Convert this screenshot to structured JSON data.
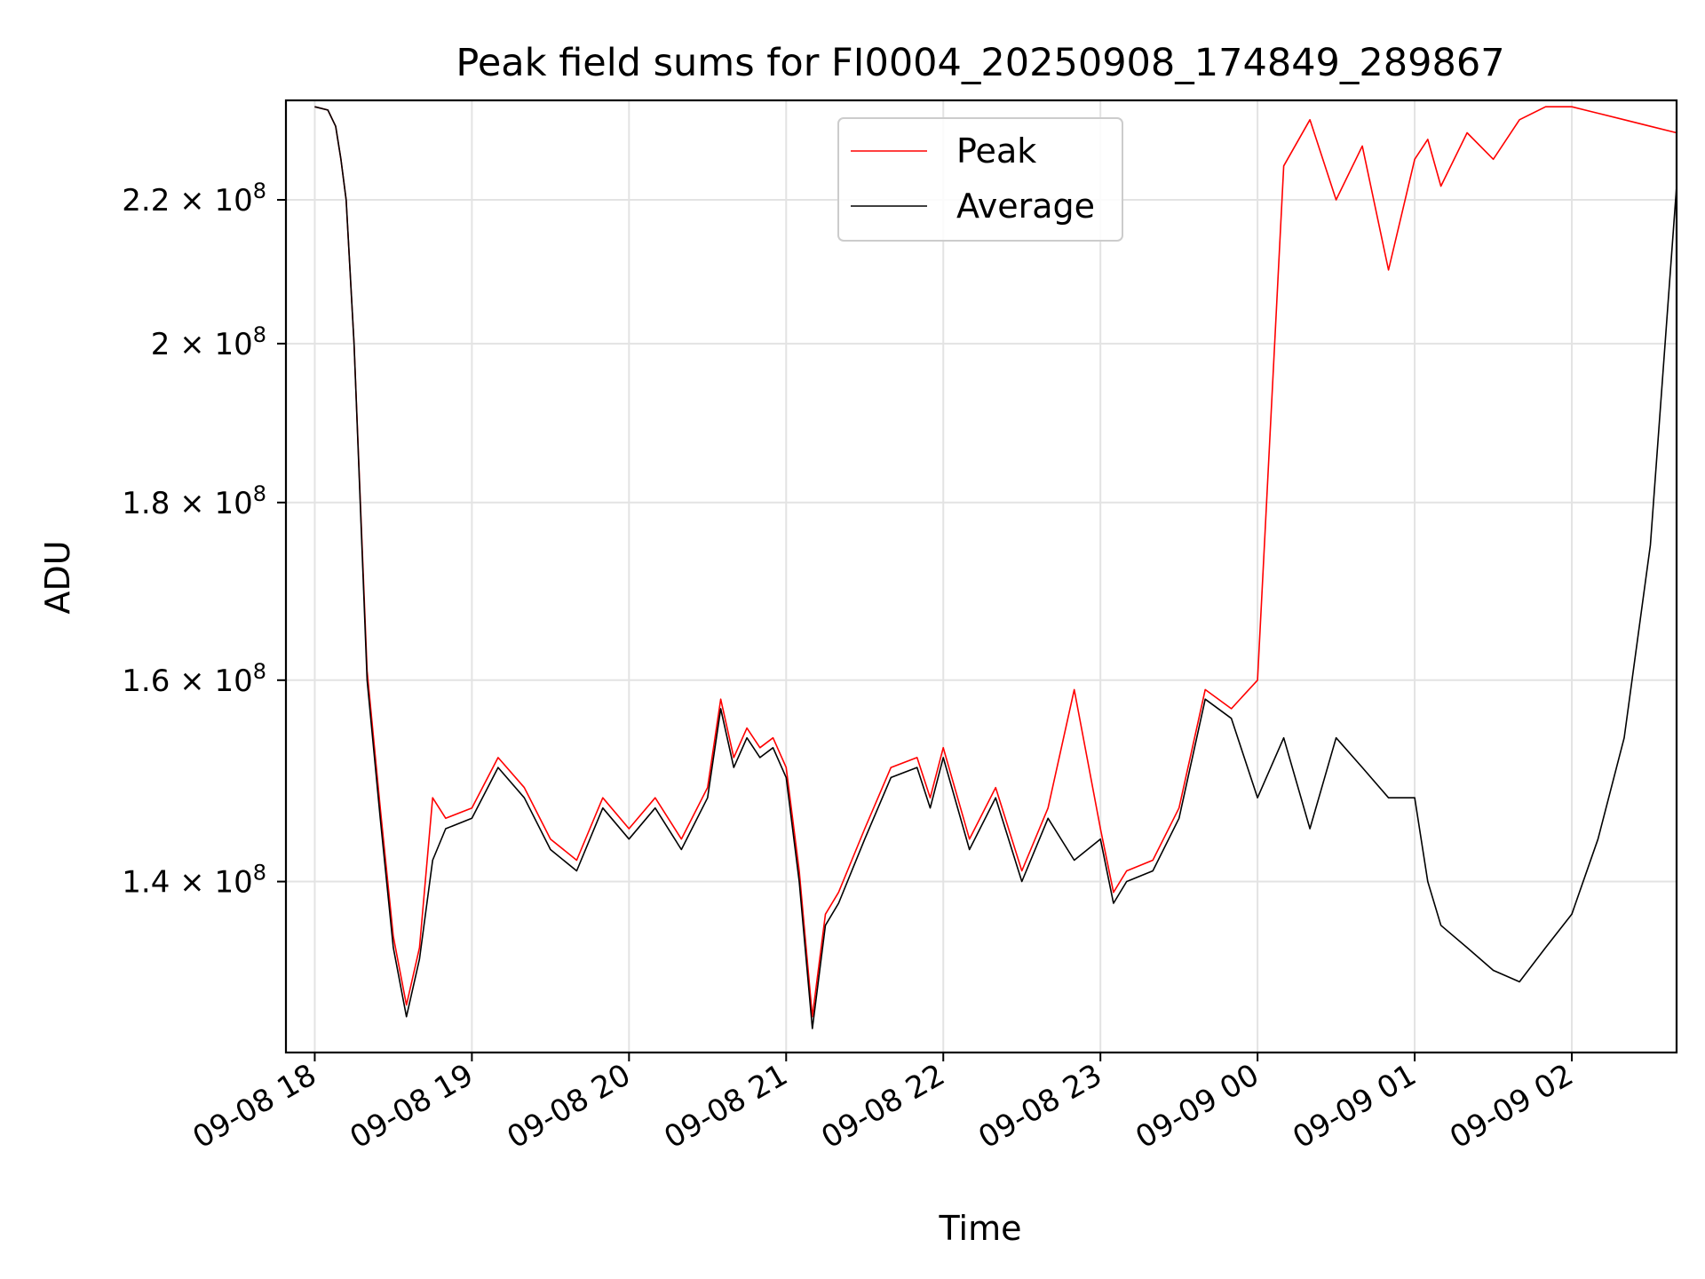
{
  "chart_data": {
    "type": "line",
    "title": "Peak field sums for FI0004_20250908_174849_289867",
    "xlabel": "Time",
    "ylabel": "ADU",
    "y_scale": "log",
    "xlim": [
      "2025-09-08 17:49",
      "2025-09-09 02:40"
    ],
    "ylim": [
      125000000,
      235000000
    ],
    "grid": true,
    "legend": {
      "position": "upper center",
      "entries": [
        "Peak",
        "Average"
      ]
    },
    "x_ticks": [
      "09-08 18",
      "09-08 19",
      "09-08 20",
      "09-08 21",
      "09-08 22",
      "09-08 23",
      "09-09 00",
      "09-09 01",
      "09-09 02"
    ],
    "x_tick_times": [
      "2025-09-08 18:00",
      "2025-09-08 19:00",
      "2025-09-08 20:00",
      "2025-09-08 21:00",
      "2025-09-08 22:00",
      "2025-09-08 23:00",
      "2025-09-09 00:00",
      "2025-09-09 01:00",
      "2025-09-09 02:00"
    ],
    "y_ticks": [
      {
        "value": 140000000,
        "mantissa": "1.4",
        "exp": "8"
      },
      {
        "value": 160000000,
        "mantissa": "1.6",
        "exp": "8"
      },
      {
        "value": 180000000,
        "mantissa": "1.8",
        "exp": "8"
      },
      {
        "value": 200000000,
        "mantissa": "2",
        "exp": "8"
      },
      {
        "value": 220000000,
        "mantissa": "2.2",
        "exp": "8"
      }
    ],
    "series": [
      {
        "name": "Average",
        "color": "#000000",
        "x": [
          "2025-09-08 18:00",
          "2025-09-08 18:05",
          "2025-09-08 18:08",
          "2025-09-08 18:10",
          "2025-09-08 18:12",
          "2025-09-08 18:15",
          "2025-09-08 18:20",
          "2025-09-08 18:25",
          "2025-09-08 18:30",
          "2025-09-08 18:35",
          "2025-09-08 18:40",
          "2025-09-08 18:45",
          "2025-09-08 18:50",
          "2025-09-08 19:00",
          "2025-09-08 19:10",
          "2025-09-08 19:20",
          "2025-09-08 19:30",
          "2025-09-08 19:40",
          "2025-09-08 19:50",
          "2025-09-08 20:00",
          "2025-09-08 20:10",
          "2025-09-08 20:20",
          "2025-09-08 20:30",
          "2025-09-08 20:35",
          "2025-09-08 20:40",
          "2025-09-08 20:45",
          "2025-09-08 20:50",
          "2025-09-08 20:55",
          "2025-09-08 21:00",
          "2025-09-08 21:05",
          "2025-09-08 21:10",
          "2025-09-08 21:15",
          "2025-09-08 21:20",
          "2025-09-08 21:30",
          "2025-09-08 21:40",
          "2025-09-08 21:50",
          "2025-09-08 21:55",
          "2025-09-08 22:00",
          "2025-09-08 22:10",
          "2025-09-08 22:20",
          "2025-09-08 22:30",
          "2025-09-08 22:40",
          "2025-09-08 22:50",
          "2025-09-08 23:00",
          "2025-09-08 23:05",
          "2025-09-08 23:10",
          "2025-09-08 23:20",
          "2025-09-08 23:30",
          "2025-09-08 23:40",
          "2025-09-08 23:50",
          "2025-09-09 00:00",
          "2025-09-09 00:10",
          "2025-09-09 00:20",
          "2025-09-09 00:30",
          "2025-09-09 00:40",
          "2025-09-09 00:50",
          "2025-09-09 01:00",
          "2025-09-09 01:05",
          "2025-09-09 01:10",
          "2025-09-09 01:20",
          "2025-09-09 01:30",
          "2025-09-09 01:40",
          "2025-09-09 01:50",
          "2025-09-09 02:00",
          "2025-09-09 02:10",
          "2025-09-09 02:20",
          "2025-09-09 02:30",
          "2025-09-09 02:40"
        ],
        "y": [
          234000000,
          233500000,
          231000000,
          226000000,
          220000000,
          200000000,
          160000000,
          146000000,
          134000000,
          128000000,
          133000000,
          142000000,
          145000000,
          146000000,
          151000000,
          148000000,
          143000000,
          141000000,
          147000000,
          144000000,
          147000000,
          143000000,
          148000000,
          157000000,
          151000000,
          154000000,
          152000000,
          153000000,
          150000000,
          140000000,
          127000000,
          136000000,
          138000000,
          144000000,
          150000000,
          151000000,
          147000000,
          152000000,
          143000000,
          148000000,
          140000000,
          146000000,
          142000000,
          144000000,
          138000000,
          140000000,
          141000000,
          146000000,
          158000000,
          156000000,
          148000000,
          154000000,
          145000000,
          154000000,
          151000000,
          148000000,
          148000000,
          140000000,
          136000000,
          134000000,
          132000000,
          131000000,
          134000000,
          137000000,
          144000000,
          154000000,
          175000000,
          222000000
        ]
      },
      {
        "name": "Peak",
        "color": "#ff0000",
        "x": [
          "2025-09-08 18:00",
          "2025-09-08 18:05",
          "2025-09-08 18:08",
          "2025-09-08 18:10",
          "2025-09-08 18:12",
          "2025-09-08 18:15",
          "2025-09-08 18:20",
          "2025-09-08 18:25",
          "2025-09-08 18:30",
          "2025-09-08 18:35",
          "2025-09-08 18:40",
          "2025-09-08 18:45",
          "2025-09-08 18:50",
          "2025-09-08 19:00",
          "2025-09-08 19:10",
          "2025-09-08 19:20",
          "2025-09-08 19:30",
          "2025-09-08 19:40",
          "2025-09-08 19:50",
          "2025-09-08 20:00",
          "2025-09-08 20:10",
          "2025-09-08 20:20",
          "2025-09-08 20:30",
          "2025-09-08 20:35",
          "2025-09-08 20:40",
          "2025-09-08 20:45",
          "2025-09-08 20:50",
          "2025-09-08 20:55",
          "2025-09-08 21:00",
          "2025-09-08 21:05",
          "2025-09-08 21:10",
          "2025-09-08 21:15",
          "2025-09-08 21:20",
          "2025-09-08 21:30",
          "2025-09-08 21:40",
          "2025-09-08 21:50",
          "2025-09-08 21:55",
          "2025-09-08 22:00",
          "2025-09-08 22:10",
          "2025-09-08 22:20",
          "2025-09-08 22:30",
          "2025-09-08 22:40",
          "2025-09-08 22:50",
          "2025-09-08 23:00",
          "2025-09-08 23:05",
          "2025-09-08 23:10",
          "2025-09-08 23:20",
          "2025-09-08 23:30",
          "2025-09-08 23:40",
          "2025-09-08 23:50",
          "2025-09-09 00:00",
          "2025-09-09 00:10",
          "2025-09-09 00:20",
          "2025-09-09 00:30",
          "2025-09-09 00:40",
          "2025-09-09 00:50",
          "2025-09-09 01:00",
          "2025-09-09 01:05",
          "2025-09-09 01:10",
          "2025-09-09 01:20",
          "2025-09-09 01:30",
          "2025-09-09 01:40",
          "2025-09-09 01:50",
          "2025-09-09 02:00",
          "2025-09-09 02:10",
          "2025-09-09 02:20",
          "2025-09-09 02:30",
          "2025-09-09 02:40"
        ],
        "y": [
          234000000,
          233500000,
          231000000,
          226000000,
          220000000,
          200000000,
          161000000,
          147000000,
          135000000,
          129000000,
          134000000,
          148000000,
          146000000,
          147000000,
          152000000,
          149000000,
          144000000,
          142000000,
          148000000,
          145000000,
          148000000,
          144000000,
          149000000,
          158000000,
          152000000,
          155000000,
          153000000,
          154000000,
          151000000,
          141000000,
          128000000,
          137000000,
          139000000,
          145000000,
          151000000,
          152000000,
          148000000,
          153000000,
          144000000,
          149000000,
          141000000,
          147000000,
          159000000,
          145000000,
          139000000,
          141000000,
          142000000,
          147000000,
          159000000,
          157000000,
          160000000,
          225000000,
          232000000,
          220000000,
          228000000,
          210000000,
          226000000,
          229000000,
          222000000,
          230000000,
          226000000,
          232000000,
          234000000,
          234000000,
          233000000,
          232000000,
          231000000,
          230000000
        ]
      }
    ]
  }
}
